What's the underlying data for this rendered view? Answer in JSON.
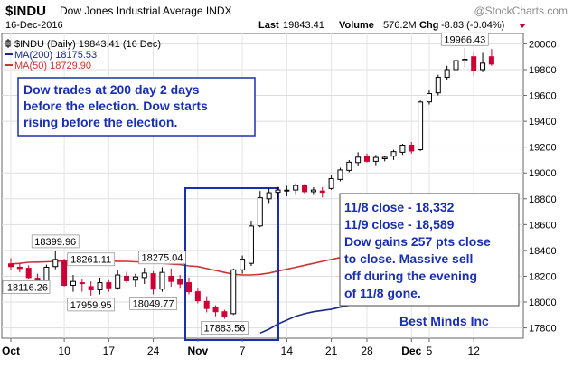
{
  "header": {
    "symbol": "$INDU",
    "name": "Dow Jones Industrial Average INDX",
    "brand": "@StockCharts.com",
    "date": "16-Dec-2016",
    "last_label": "Last",
    "last_value": "19843.41",
    "volume_label": "Volume",
    "volume_value": "576.2M",
    "chg_label": "Chg",
    "chg_value": "-8.83 (-0.04%)"
  },
  "legend": {
    "price": "$INDU (Daily) 19843.41 (16 Dec)",
    "ma200": "MA(200) 18175.53",
    "ma50": "MA(50) 18729.90"
  },
  "annotations": {
    "box1": [
      "Dow trades at 200 day 2 days",
      "before the election. Dow starts",
      "rising before the election."
    ],
    "box2": [
      "11/8 close - 18,332",
      "11/9 close - 18,589",
      "Dow gains 257 pts close",
      "to close. Massive sell",
      "off during the evening",
      "of 11/8 gone."
    ],
    "credit": "Best Minds Inc"
  },
  "colors": {
    "up": "#000000",
    "down": "#cc0033",
    "ma200": "#1a2a8a",
    "ma50": "#cc3333",
    "note_text": "#1a2fb0",
    "highlight_box": "#1a2fb0",
    "brand": "#9a9a9a"
  },
  "chart_data": {
    "type": "candlestick",
    "ylim": [
      17720,
      20080
    ],
    "y_ticks": [
      17800,
      18000,
      18200,
      18400,
      18600,
      18800,
      19000,
      19200,
      19400,
      19600,
      19800,
      20000
    ],
    "x_ticks": [
      {
        "label": "Oct",
        "index": 0
      },
      {
        "label": "10",
        "index": 6
      },
      {
        "label": "17",
        "index": 11
      },
      {
        "label": "24",
        "index": 16
      },
      {
        "label": "Nov",
        "index": 21
      },
      {
        "label": "7",
        "index": 26
      },
      {
        "label": "14",
        "index": 31
      },
      {
        "label": "21",
        "index": 36
      },
      {
        "label": "28",
        "index": 40
      },
      {
        "label": "Dec",
        "index": 45
      },
      {
        "label": "5",
        "index": 47
      },
      {
        "label": "12",
        "index": 52
      }
    ],
    "candles": [
      {
        "o": 18296,
        "h": 18340,
        "l": 18250,
        "c": 18275
      },
      {
        "o": 18270,
        "h": 18300,
        "l": 18230,
        "c": 18260
      },
      {
        "o": 18262,
        "h": 18285,
        "l": 18180,
        "c": 18190
      },
      {
        "o": 18185,
        "h": 18220,
        "l": 18116,
        "c": 18160
      },
      {
        "o": 18162,
        "h": 18290,
        "l": 18150,
        "c": 18270
      },
      {
        "o": 18275,
        "h": 18400,
        "l": 18255,
        "c": 18330
      },
      {
        "o": 18315,
        "h": 18335,
        "l": 18120,
        "c": 18130
      },
      {
        "o": 18130,
        "h": 18210,
        "l": 18080,
        "c": 18160
      },
      {
        "o": 18150,
        "h": 18175,
        "l": 18080,
        "c": 18145
      },
      {
        "o": 18120,
        "h": 18160,
        "l": 18050,
        "c": 18095
      },
      {
        "o": 18095,
        "h": 18190,
        "l": 18060,
        "c": 18150
      },
      {
        "o": 18150,
        "h": 18170,
        "l": 18080,
        "c": 18110
      },
      {
        "o": 18110,
        "h": 18250,
        "l": 18095,
        "c": 18210
      },
      {
        "o": 18200,
        "h": 18235,
        "l": 18150,
        "c": 18165
      },
      {
        "o": 18170,
        "h": 18220,
        "l": 18120,
        "c": 18195
      },
      {
        "o": 18190,
        "h": 18265,
        "l": 18140,
        "c": 18225
      },
      {
        "o": 18220,
        "h": 18240,
        "l": 18060,
        "c": 18100
      },
      {
        "o": 18100,
        "h": 18270,
        "l": 18080,
        "c": 18230
      },
      {
        "o": 18200,
        "h": 18260,
        "l": 18120,
        "c": 18160
      },
      {
        "o": 18175,
        "h": 18210,
        "l": 18110,
        "c": 18140
      },
      {
        "o": 18150,
        "h": 18190,
        "l": 18060,
        "c": 18080
      },
      {
        "o": 18080,
        "h": 18110,
        "l": 17990,
        "c": 18010
      },
      {
        "o": 18005,
        "h": 18045,
        "l": 17920,
        "c": 17950
      },
      {
        "o": 17955,
        "h": 17975,
        "l": 17890,
        "c": 17925
      },
      {
        "o": 17925,
        "h": 17940,
        "l": 17870,
        "c": 17890
      },
      {
        "o": 17910,
        "h": 18260,
        "l": 17900,
        "c": 18250
      },
      {
        "o": 18250,
        "h": 18360,
        "l": 18220,
        "c": 18332
      },
      {
        "o": 18300,
        "h": 18630,
        "l": 18280,
        "c": 18589
      },
      {
        "o": 18590,
        "h": 18860,
        "l": 18580,
        "c": 18808
      },
      {
        "o": 18800,
        "h": 18880,
        "l": 18760,
        "c": 18847
      },
      {
        "o": 18850,
        "h": 18890,
        "l": 18800,
        "c": 18868
      },
      {
        "o": 18860,
        "h": 18900,
        "l": 18820,
        "c": 18867
      },
      {
        "o": 18868,
        "h": 18920,
        "l": 18830,
        "c": 18903
      },
      {
        "o": 18900,
        "h": 18915,
        "l": 18840,
        "c": 18855
      },
      {
        "o": 18855,
        "h": 18890,
        "l": 18830,
        "c": 18868
      },
      {
        "o": 18860,
        "h": 18890,
        "l": 18810,
        "c": 18850
      },
      {
        "o": 18880,
        "h": 18980,
        "l": 18870,
        "c": 18956
      },
      {
        "o": 18950,
        "h": 19040,
        "l": 18935,
        "c": 19023
      },
      {
        "o": 19020,
        "h": 19100,
        "l": 19005,
        "c": 19083
      },
      {
        "o": 19080,
        "h": 19160,
        "l": 19050,
        "c": 19122
      },
      {
        "o": 19125,
        "h": 19150,
        "l": 19080,
        "c": 19090
      },
      {
        "o": 19090,
        "h": 19140,
        "l": 19060,
        "c": 19120
      },
      {
        "o": 19110,
        "h": 19135,
        "l": 19090,
        "c": 19121
      },
      {
        "o": 19130,
        "h": 19180,
        "l": 19100,
        "c": 19165
      },
      {
        "o": 19160,
        "h": 19225,
        "l": 19140,
        "c": 19215
      },
      {
        "o": 19215,
        "h": 19240,
        "l": 19150,
        "c": 19170
      },
      {
        "o": 19180,
        "h": 19560,
        "l": 19170,
        "c": 19549
      },
      {
        "o": 19550,
        "h": 19640,
        "l": 19530,
        "c": 19614
      },
      {
        "o": 19620,
        "h": 19760,
        "l": 19600,
        "c": 19740
      },
      {
        "o": 19740,
        "h": 19830,
        "l": 19720,
        "c": 19800
      },
      {
        "o": 19800,
        "h": 19910,
        "l": 19780,
        "c": 19870
      },
      {
        "o": 19870,
        "h": 19966,
        "l": 19820,
        "c": 19880
      },
      {
        "o": 19900,
        "h": 19940,
        "l": 19750,
        "c": 19790
      },
      {
        "o": 19800,
        "h": 19930,
        "l": 19780,
        "c": 19850
      },
      {
        "o": 19900,
        "h": 19960,
        "l": 19830,
        "c": 19843
      }
    ],
    "ma200": {
      "start_index": 28,
      "values": [
        17760,
        17790,
        17830,
        17860,
        17890,
        17910,
        17925,
        17935,
        17945,
        17960,
        17975,
        17990,
        18000,
        18015,
        18030
      ]
    },
    "ma50": [
      18295,
      18300,
      18308,
      18310,
      18312,
      18315,
      18318,
      18322,
      18323,
      18322,
      18320,
      18318,
      18316,
      18315,
      18312,
      18310,
      18305,
      18300,
      18295,
      18290,
      18280,
      18275,
      18260,
      18245,
      18230,
      18215,
      18210,
      18210,
      18215,
      18225,
      18240,
      18255,
      18270,
      18285,
      18300,
      18315,
      18330,
      18345,
      18360,
      18375,
      18390,
      18405,
      18420
    ],
    "price_labels": [
      {
        "text": "18399.96",
        "index": 5,
        "price": 18400,
        "pos": "above"
      },
      {
        "text": "18116.26",
        "index": 3,
        "price": 18116,
        "pos": "left"
      },
      {
        "text": "18261.11",
        "index": 9,
        "price": 18261,
        "pos": "above"
      },
      {
        "text": "17959.95",
        "index": 9,
        "price": 18050,
        "pos": "below"
      },
      {
        "text": "18275.04",
        "index": 17,
        "price": 18275,
        "pos": "above"
      },
      {
        "text": "18049.77",
        "index": 16,
        "price": 18060,
        "pos": "below"
      },
      {
        "text": "17883.56",
        "index": 24,
        "price": 17870,
        "pos": "below"
      },
      {
        "text": "19966.43",
        "index": 51,
        "price": 19966,
        "pos": "above"
      }
    ]
  }
}
